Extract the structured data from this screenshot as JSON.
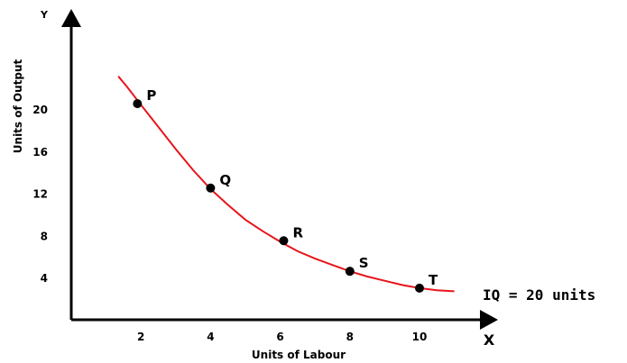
{
  "chart_data": {
    "type": "line",
    "xlabel": "Units of Labour",
    "ylabel": "Units of Output",
    "x_axis_letter": "X",
    "y_axis_letter": "Y",
    "x_ticks": [
      "2",
      "4",
      "6",
      "8",
      "10"
    ],
    "y_ticks": [
      "4",
      "8",
      "12",
      "16",
      "20"
    ],
    "xlim": [
      0,
      12.1
    ],
    "ylim": [
      0,
      23.5
    ],
    "grid": false,
    "curve_label": "IQ = 20 units",
    "curve_color": "#e8141b",
    "point_color": "#000000",
    "curve": {
      "x": [
        1.35,
        1.6,
        2,
        2.5,
        3,
        3.5,
        4,
        4.5,
        5,
        5.5,
        6,
        6.5,
        7,
        7.5,
        8,
        8.5,
        9,
        9.5,
        10,
        10.5,
        11
      ],
      "y": [
        23.1,
        22.1,
        20.4,
        18.3,
        16.2,
        14.2,
        12.4,
        10.9,
        9.5,
        8.4,
        7.4,
        6.5,
        5.8,
        5.2,
        4.6,
        4.1,
        3.7,
        3.3,
        3.0,
        2.8,
        2.7
      ]
    },
    "points": [
      {
        "label": "P",
        "x": 1.9,
        "y": 20.5
      },
      {
        "label": "Q",
        "x": 4.0,
        "y": 12.5
      },
      {
        "label": "R",
        "x": 6.1,
        "y": 7.5
      },
      {
        "label": "S",
        "x": 8.0,
        "y": 4.6
      },
      {
        "label": "T",
        "x": 10.0,
        "y": 3.0
      }
    ]
  }
}
